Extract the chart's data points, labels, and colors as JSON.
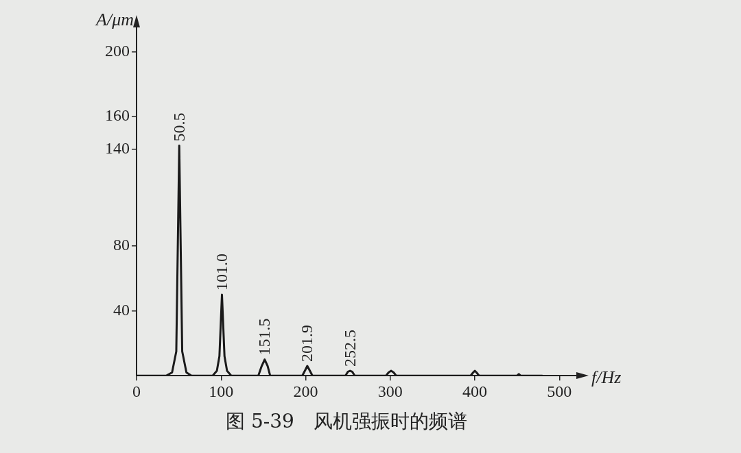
{
  "chart_data": {
    "type": "line",
    "xlabel": "f/Hz",
    "ylabel": "A/μm",
    "xlim": [
      0,
      520
    ],
    "ylim": [
      0,
      215
    ],
    "xticks": [
      0,
      100,
      200,
      300,
      400,
      500
    ],
    "yticks": [
      {
        "value": 40,
        "label": "40"
      },
      {
        "value": 80,
        "label": "80"
      },
      {
        "value": 140,
        "label": "140"
      },
      {
        "value": 160,
        "label": "160"
      },
      {
        "value": 200,
        "label": "200"
      }
    ],
    "grid": false,
    "legend": false,
    "marker": "none",
    "line_style": "solid",
    "series": [
      {
        "color": "#1a1a1a",
        "x": [
          0,
          35,
          42,
          47,
          50.5,
          54,
          59,
          65,
          90,
          95,
          98,
          101,
          104,
          107,
          112,
          144,
          148,
          151.5,
          155,
          158,
          196,
          200,
          201.9,
          204,
          208,
          247,
          250,
          252.5,
          255,
          258,
          295,
          298,
          301,
          304,
          307,
          395,
          398,
          400,
          402,
          405,
          450,
          452,
          454,
          480
        ],
        "values": [
          0,
          0,
          2,
          15,
          142,
          15,
          2,
          0,
          0,
          3,
          12,
          50,
          12,
          3,
          0,
          0,
          6,
          10,
          6,
          0,
          0,
          4,
          6,
          4,
          0,
          0,
          2.5,
          3,
          2.5,
          0,
          0,
          2,
          3,
          2,
          0,
          0,
          2,
          3,
          2,
          0,
          0,
          1,
          0,
          0
        ]
      }
    ],
    "annotations": [
      {
        "text": "50.5",
        "x": 50.5,
        "y": 142
      },
      {
        "text": "101.0",
        "x": 101,
        "y": 50
      },
      {
        "text": "151.5",
        "x": 151.5,
        "y": 10
      },
      {
        "text": "201.9",
        "x": 201.9,
        "y": 6
      },
      {
        "text": "252.5",
        "x": 252.5,
        "y": 3
      },
      "图 5-39　风机强振时的频谱"
    ]
  }
}
